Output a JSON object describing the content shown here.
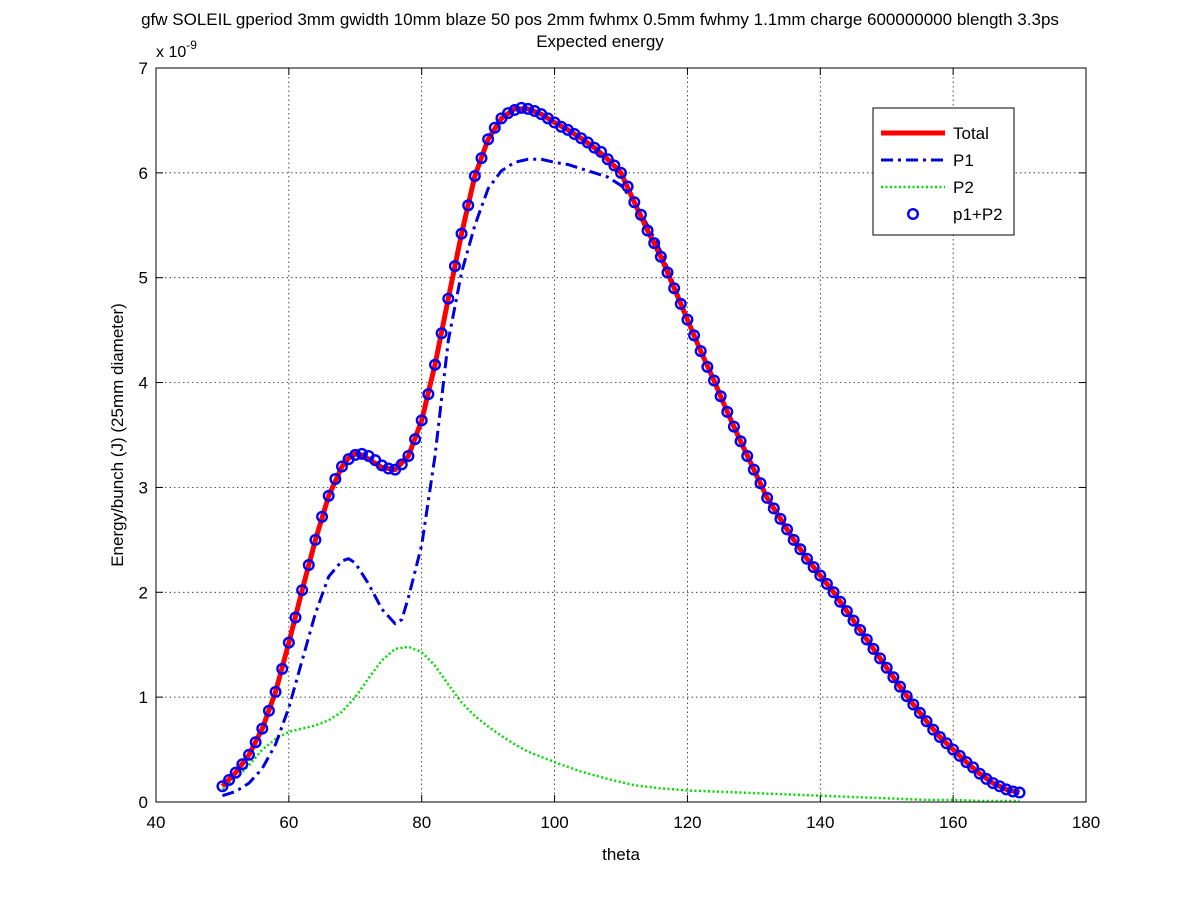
{
  "chart_data": {
    "type": "line",
    "title": "gfw SOLEIL gperiod 3mm gwidth 10mm blaze 50 pos 2mm fwhmx 0.5mm fwhmy 1.1mm charge 600000000 blength 3.3ps",
    "subtitle": "Expected energy",
    "xlabel": "theta",
    "ylabel": "Energy/bunch (J)  (25mm diameter)",
    "y_exponent_label": "x 10",
    "y_exponent_power": "-9",
    "xlim": [
      40,
      180
    ],
    "ylim": [
      0,
      7
    ],
    "xticks": [
      40,
      60,
      80,
      100,
      120,
      140,
      160,
      180
    ],
    "yticks": [
      0,
      1,
      2,
      3,
      4,
      5,
      6,
      7
    ],
    "xtick_labels": [
      "40",
      "60",
      "80",
      "100",
      "120",
      "140",
      "160",
      "180"
    ],
    "ytick_labels": [
      "0",
      "1",
      "2",
      "3",
      "4",
      "5",
      "6",
      "7"
    ],
    "grid": true,
    "legend_position": "top-right",
    "series": [
      {
        "name": "Total",
        "style": "solid",
        "color": "#ff0000",
        "x": [
          50,
          52,
          54,
          56,
          58,
          60,
          62,
          64,
          66,
          68,
          69,
          70,
          71,
          72,
          74,
          76,
          78,
          80,
          82,
          84,
          86,
          88,
          90,
          92,
          94,
          96,
          98,
          100,
          102,
          104,
          106,
          108,
          110,
          112,
          114,
          116,
          118,
          120,
          122,
          124,
          126,
          128,
          130,
          132,
          134,
          136,
          138,
          140,
          142,
          144,
          146,
          148,
          150,
          152,
          154,
          156,
          158,
          160,
          162,
          164,
          166,
          168,
          170
        ],
        "y": [
          0.15,
          0.28,
          0.45,
          0.7,
          1.05,
          1.52,
          2.02,
          2.5,
          2.92,
          3.2,
          3.28,
          3.32,
          3.31,
          3.27,
          3.19,
          3.17,
          3.3,
          3.64,
          4.17,
          4.8,
          5.42,
          5.97,
          6.32,
          6.52,
          6.61,
          6.61,
          6.56,
          6.48,
          6.41,
          6.33,
          6.24,
          6.13,
          6.0,
          5.72,
          5.45,
          5.2,
          4.9,
          4.6,
          4.3,
          4.02,
          3.72,
          3.44,
          3.17,
          2.9,
          2.7,
          2.5,
          2.32,
          2.16,
          2.0,
          1.82,
          1.64,
          1.46,
          1.28,
          1.1,
          0.93,
          0.77,
          0.62,
          0.5,
          0.38,
          0.27,
          0.18,
          0.12,
          0.09
        ]
      },
      {
        "name": "P1",
        "style": "dashdot",
        "color": "#0000dd",
        "x": [
          50,
          52,
          54,
          56,
          58,
          60,
          62,
          64,
          66,
          68,
          69,
          70,
          72,
          74,
          76,
          77,
          78,
          80,
          82,
          84,
          86,
          88,
          90,
          92,
          94,
          96,
          98,
          100,
          102,
          104,
          106,
          108,
          110,
          112,
          114,
          116,
          118,
          120
        ],
        "y": [
          0.06,
          0.1,
          0.18,
          0.32,
          0.55,
          0.9,
          1.35,
          1.8,
          2.15,
          2.3,
          2.32,
          2.28,
          2.08,
          1.84,
          1.7,
          1.74,
          1.95,
          2.45,
          3.3,
          4.4,
          5.05,
          5.5,
          5.85,
          6.02,
          6.1,
          6.13,
          6.13,
          6.1,
          6.08,
          6.04,
          6.0,
          5.96,
          5.88,
          5.72,
          5.5,
          5.25,
          4.93,
          4.62
        ]
      },
      {
        "name": "P2",
        "style": "dotted",
        "color": "#00dd00",
        "x": [
          50,
          52,
          54,
          56,
          58,
          60,
          62,
          64,
          66,
          68,
          70,
          72,
          74,
          76,
          78,
          80,
          82,
          84,
          86,
          88,
          90,
          92,
          94,
          96,
          98,
          100,
          104,
          108,
          112,
          116,
          120,
          124,
          128,
          132,
          136,
          140,
          144,
          148,
          152,
          156,
          160,
          164,
          168,
          170
        ],
        "y": [
          0.12,
          0.22,
          0.35,
          0.5,
          0.6,
          0.67,
          0.7,
          0.73,
          0.78,
          0.86,
          1.0,
          1.18,
          1.35,
          1.46,
          1.48,
          1.43,
          1.3,
          1.12,
          0.95,
          0.82,
          0.72,
          0.63,
          0.55,
          0.48,
          0.43,
          0.38,
          0.29,
          0.22,
          0.16,
          0.13,
          0.11,
          0.1,
          0.09,
          0.08,
          0.07,
          0.06,
          0.05,
          0.04,
          0.03,
          0.02,
          0.02,
          0.01,
          0.01,
          0.01
        ]
      },
      {
        "name": "p1+P2",
        "style": "markers",
        "color": "#0000ff",
        "marker": "circle",
        "x": [
          50,
          51,
          52,
          53,
          54,
          55,
          56,
          57,
          58,
          59,
          60,
          61,
          62,
          63,
          64,
          65,
          66,
          67,
          68,
          69,
          70,
          71,
          72,
          73,
          74,
          75,
          76,
          77,
          78,
          79,
          80,
          81,
          82,
          83,
          84,
          85,
          86,
          87,
          88,
          89,
          90,
          91,
          92,
          93,
          94,
          95,
          96,
          97,
          98,
          99,
          100,
          101,
          102,
          103,
          104,
          105,
          106,
          107,
          108,
          109,
          110,
          111,
          112,
          113,
          114,
          115,
          116,
          117,
          118,
          119,
          120,
          121,
          122,
          123,
          124,
          125,
          126,
          127,
          128,
          129,
          130,
          131,
          132,
          133,
          134,
          135,
          136,
          137,
          138,
          139,
          140,
          141,
          142,
          143,
          144,
          145,
          146,
          147,
          148,
          149,
          150,
          151,
          152,
          153,
          154,
          155,
          156,
          157,
          158,
          159,
          160,
          161,
          162,
          163,
          164,
          165,
          166,
          167,
          168,
          169,
          170
        ],
        "y": [
          0.15,
          0.21,
          0.28,
          0.36,
          0.45,
          0.57,
          0.7,
          0.87,
          1.05,
          1.27,
          1.52,
          1.76,
          2.02,
          2.26,
          2.5,
          2.72,
          2.92,
          3.08,
          3.2,
          3.27,
          3.31,
          3.32,
          3.3,
          3.26,
          3.21,
          3.18,
          3.17,
          3.22,
          3.3,
          3.46,
          3.64,
          3.89,
          4.17,
          4.47,
          4.8,
          5.11,
          5.42,
          5.69,
          5.97,
          6.14,
          6.32,
          6.43,
          6.52,
          6.57,
          6.6,
          6.62,
          6.61,
          6.59,
          6.56,
          6.52,
          6.48,
          6.44,
          6.41,
          6.37,
          6.33,
          6.29,
          6.24,
          6.2,
          6.13,
          6.07,
          6.0,
          5.87,
          5.72,
          5.6,
          5.45,
          5.33,
          5.2,
          5.05,
          4.9,
          4.75,
          4.6,
          4.45,
          4.3,
          4.15,
          4.02,
          3.87,
          3.72,
          3.58,
          3.44,
          3.3,
          3.17,
          3.04,
          2.9,
          2.8,
          2.7,
          2.6,
          2.5,
          2.41,
          2.32,
          2.24,
          2.16,
          2.08,
          2.0,
          1.91,
          1.82,
          1.73,
          1.64,
          1.55,
          1.46,
          1.37,
          1.28,
          1.19,
          1.1,
          1.01,
          0.93,
          0.85,
          0.77,
          0.69,
          0.62,
          0.56,
          0.5,
          0.44,
          0.38,
          0.33,
          0.27,
          0.22,
          0.18,
          0.15,
          0.12,
          0.1,
          0.09
        ]
      }
    ]
  }
}
